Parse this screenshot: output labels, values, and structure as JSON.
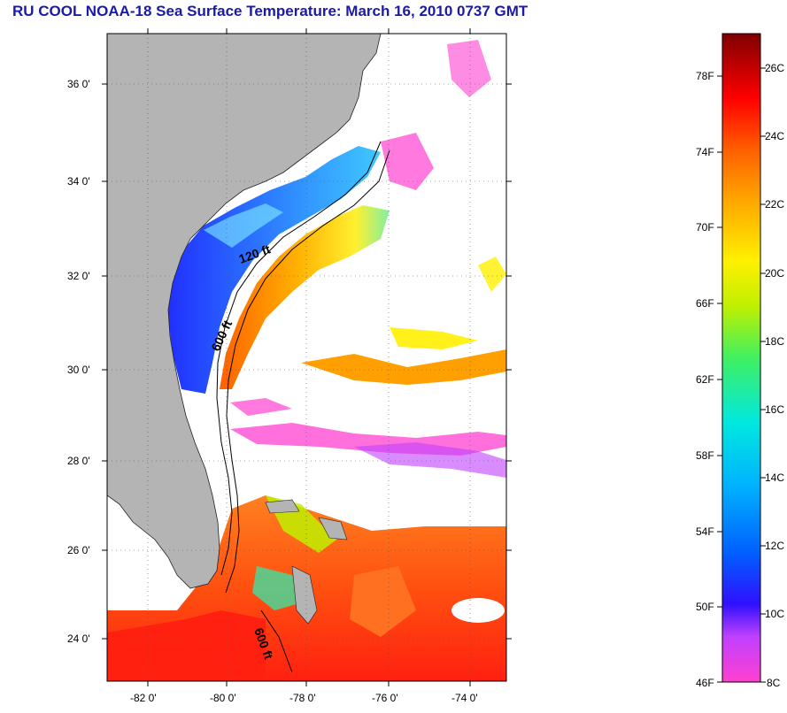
{
  "title": "RU COOL  NOAA-18  Sea Surface Temperature:  March 16, 2010 0737 GMT",
  "map": {
    "lat_labels": [
      "36 0'",
      "34 0'",
      "32 0'",
      "30 0'",
      "28 0'",
      "26 0'",
      "24 0'"
    ],
    "lon_labels": [
      "-82 0'",
      "-80 0'",
      "-78 0'",
      "-76 0'",
      "-74 0'"
    ],
    "isobath_labels": [
      "120 ft",
      "600 ft",
      "600 ft"
    ],
    "land_color": "#b4b4b4",
    "cloud_color": "#ffffff"
  },
  "colorbar": {
    "fahrenheit": [
      "78F",
      "74F",
      "70F",
      "66F",
      "62F",
      "58F",
      "54F",
      "50F",
      "46F"
    ],
    "celsius": [
      "26C",
      "24C",
      "22C",
      "20C",
      "18C",
      "16C",
      "14C",
      "12C",
      "10C",
      "8C"
    ]
  }
}
